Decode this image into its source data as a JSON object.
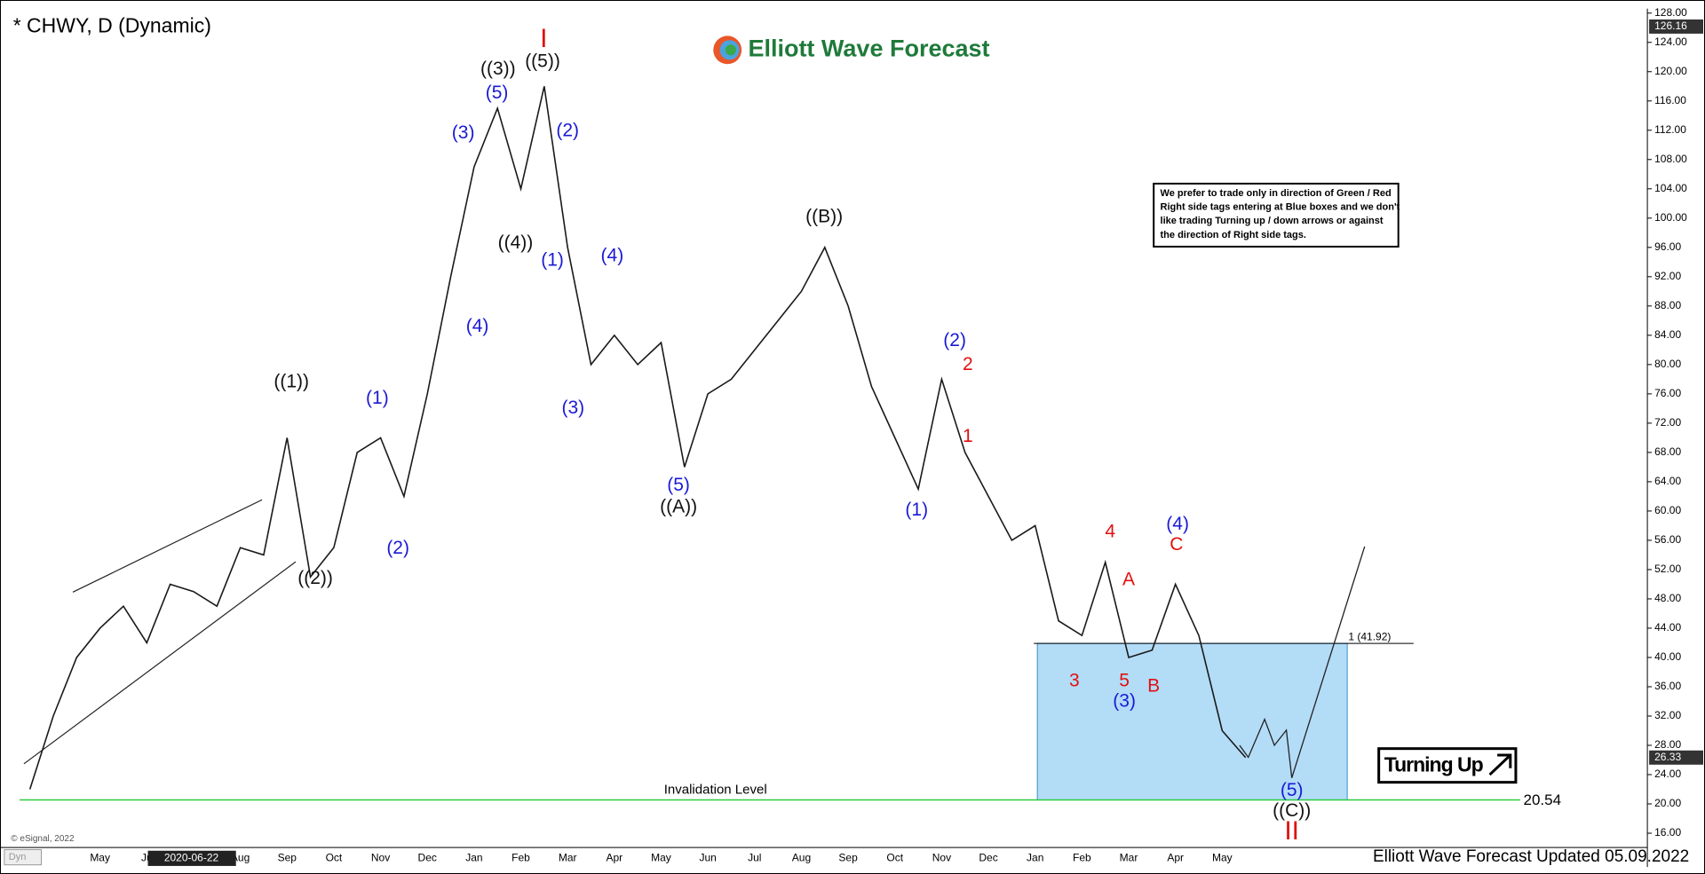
{
  "chart_data": {
    "type": "line",
    "title": "* CHWY, D (Dynamic)",
    "brand": "Elliott Wave Forecast",
    "footer": "Elliott Wave Forecast Updated 05.09.2022",
    "copyright": "© eSignal, 2022",
    "corner_tag": "Dyn",
    "date_box": "2020-06-22",
    "color": "#1a1a1a",
    "categories": [
      null,
      null,
      null,
      "May",
      null,
      "Ju",
      null,
      null,
      null,
      "Aug",
      null,
      "Sep",
      null,
      "Oct",
      null,
      "Nov",
      null,
      "Dec",
      null,
      "Jan",
      null,
      "Feb",
      null,
      "Mar",
      null,
      "Apr",
      null,
      "May",
      null,
      "Jun",
      null,
      "Jul",
      null,
      "Aug",
      null,
      "Sep",
      null,
      "Oct",
      null,
      "Nov",
      null,
      "Dec",
      null,
      "Jan",
      null,
      "Feb",
      null,
      "Mar",
      null,
      "Apr",
      null,
      "May",
      null
    ],
    "values": [
      22,
      32,
      40,
      44,
      47,
      42,
      50,
      49,
      47,
      55,
      54,
      70,
      51,
      55,
      68,
      70,
      62,
      76,
      92,
      107,
      115,
      104,
      118,
      96,
      80,
      84,
      80,
      83,
      66,
      76,
      78,
      82,
      86,
      90,
      96,
      88,
      77,
      70,
      63,
      78,
      68,
      62,
      56,
      58,
      45,
      43,
      53,
      40,
      41,
      50,
      43,
      30,
      26.33
    ],
    "ylim": [
      14.2,
      128.6
    ],
    "yticks": [
      {
        "value": 16,
        "label": "16.00"
      },
      {
        "value": 20,
        "label": "20.00"
      },
      {
        "value": 24,
        "label": "24.00"
      },
      {
        "value": 28,
        "label": "28.00"
      },
      {
        "value": 32,
        "label": "32.00"
      },
      {
        "value": 36,
        "label": "36.00"
      },
      {
        "value": 40,
        "label": "40.00"
      },
      {
        "value": 44,
        "label": "44.00"
      },
      {
        "value": 48,
        "label": "48.00"
      },
      {
        "value": 52,
        "label": "52.00"
      },
      {
        "value": 56,
        "label": "56.00"
      },
      {
        "value": 60,
        "label": "60.00"
      },
      {
        "value": 64,
        "label": "64.00"
      },
      {
        "value": 68,
        "label": "68.00"
      },
      {
        "value": 72,
        "label": "72.00"
      },
      {
        "value": 76,
        "label": "76.00"
      },
      {
        "value": 80,
        "label": "80.00"
      },
      {
        "value": 84,
        "label": "84.00"
      },
      {
        "value": 88,
        "label": "88.00"
      },
      {
        "value": 92,
        "label": "92.00"
      },
      {
        "value": 96,
        "label": "96.00"
      },
      {
        "value": 100,
        "label": "100.00"
      },
      {
        "value": 104,
        "label": "104.00"
      },
      {
        "value": 108,
        "label": "108.00"
      },
      {
        "value": 112,
        "label": "112.00"
      },
      {
        "value": 116,
        "label": "116.00"
      },
      {
        "value": 120,
        "label": "120.00"
      },
      {
        "value": 124,
        "label": "124.00"
      },
      {
        "value": 128,
        "label": "128.00"
      }
    ],
    "price_tags": [
      {
        "value": 126.16,
        "label": "126.16"
      },
      {
        "value": 26.33,
        "label": "26.33"
      }
    ],
    "blue_box": {
      "top": {
        "value": 41.92,
        "label": "1 (41.92)"
      },
      "bottom": 20.54,
      "color": "#b3dcf7"
    },
    "invalidation": {
      "value": 20.54,
      "label": "Invalidation Level",
      "value_label": "20.54",
      "color": "#2ecc40"
    },
    "turning_label": "Turning Up",
    "notice": [
      "We prefer to trade only in direction of Green / Red",
      "Right side tags entering at Blue boxes and we don't",
      "like trading Turning up / down arrows or against",
      "the direction of Right side tags."
    ],
    "wave_labels": [
      {
        "color": "#111111",
        "labels": [
          "((1))",
          "((2))",
          "((3))",
          "((4))",
          "((5))",
          "((A))",
          "((B))",
          "((C))"
        ]
      },
      {
        "color": "#1a1ad6",
        "labels": [
          "(1)",
          "(2)",
          "(3)",
          "(4)",
          "(5)",
          "(1)",
          "(2)",
          "(3)",
          "(4)",
          "(5)",
          "(1)",
          "(2)",
          "(3)",
          "(4)",
          "(5)"
        ]
      },
      {
        "color": "#e01010",
        "labels": [
          "I",
          "II",
          "2",
          "1",
          "4",
          "3",
          "5",
          "A",
          "B",
          "C"
        ]
      }
    ]
  }
}
